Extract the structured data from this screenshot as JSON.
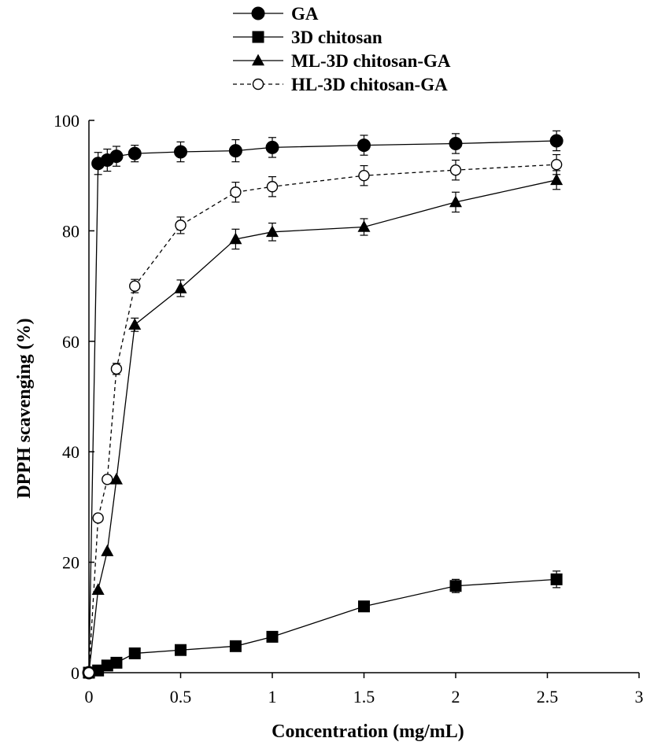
{
  "chart_data": {
    "type": "line",
    "title": "",
    "xlabel": "Concentration (mg/mL)",
    "ylabel": "DPPH scavenging  (%)",
    "xlim": [
      0,
      3
    ],
    "ylim": [
      0,
      100
    ],
    "xticks": [
      0,
      0.5,
      1,
      1.5,
      2,
      2.5,
      3
    ],
    "xtick_labels": [
      "0",
      "0.5",
      "1",
      "1.5",
      "2",
      "2.5",
      "3"
    ],
    "yticks": [
      0,
      20,
      40,
      60,
      80,
      100
    ],
    "ytick_labels": [
      "0",
      "20",
      "40",
      "60",
      "80",
      "100"
    ],
    "grid": false,
    "legend_position": "top-center",
    "series": [
      {
        "name": "GA",
        "marker": "filled-circle",
        "line": "solid",
        "x": [
          0,
          0.05,
          0.1,
          0.15,
          0.25,
          0.5,
          0.8,
          1,
          1.5,
          2,
          2.55
        ],
        "y": [
          0,
          92.2,
          92.8,
          93.5,
          94.0,
          94.3,
          94.5,
          95.1,
          95.5,
          95.8,
          96.3
        ],
        "err": [
          0,
          2.0,
          2.0,
          1.8,
          1.5,
          1.8,
          2.0,
          1.8,
          1.8,
          1.8,
          1.8
        ]
      },
      {
        "name": "3D chitosan",
        "marker": "filled-square",
        "line": "solid",
        "x": [
          0,
          0.05,
          0.1,
          0.15,
          0.25,
          0.5,
          0.8,
          1,
          1.5,
          2,
          2.55
        ],
        "y": [
          0,
          0.4,
          1.3,
          1.8,
          3.5,
          4.1,
          4.8,
          6.5,
          12.0,
          15.7,
          16.9
        ],
        "err": [
          0,
          0,
          0,
          0,
          0,
          0,
          0,
          0,
          0.8,
          1.2,
          1.5
        ]
      },
      {
        "name": "ML-3D chitosan-GA",
        "marker": "filled-triangle",
        "line": "solid",
        "x": [
          0,
          0.05,
          0.1,
          0.15,
          0.25,
          0.5,
          0.8,
          1,
          1.5,
          2,
          2.55
        ],
        "y": [
          0,
          15.0,
          22.0,
          35.0,
          63.0,
          69.6,
          78.5,
          79.8,
          80.7,
          85.2,
          89.2
        ],
        "err": [
          0,
          0,
          0,
          0,
          1.2,
          1.5,
          1.8,
          1.6,
          1.5,
          1.8,
          1.7
        ]
      },
      {
        "name": "HL-3D chitosan-GA",
        "marker": "open-circle",
        "line": "dashed",
        "x": [
          0,
          0.05,
          0.1,
          0.15,
          0.25,
          0.5,
          0.8,
          1,
          1.5,
          2,
          2.55
        ],
        "y": [
          0,
          28.0,
          35.0,
          55.0,
          70.0,
          81.0,
          87.0,
          88.0,
          90.0,
          91.0,
          92.0
        ],
        "err": [
          0,
          0,
          0,
          1.0,
          1.2,
          1.5,
          1.8,
          1.8,
          1.8,
          1.8,
          1.8
        ]
      }
    ]
  }
}
